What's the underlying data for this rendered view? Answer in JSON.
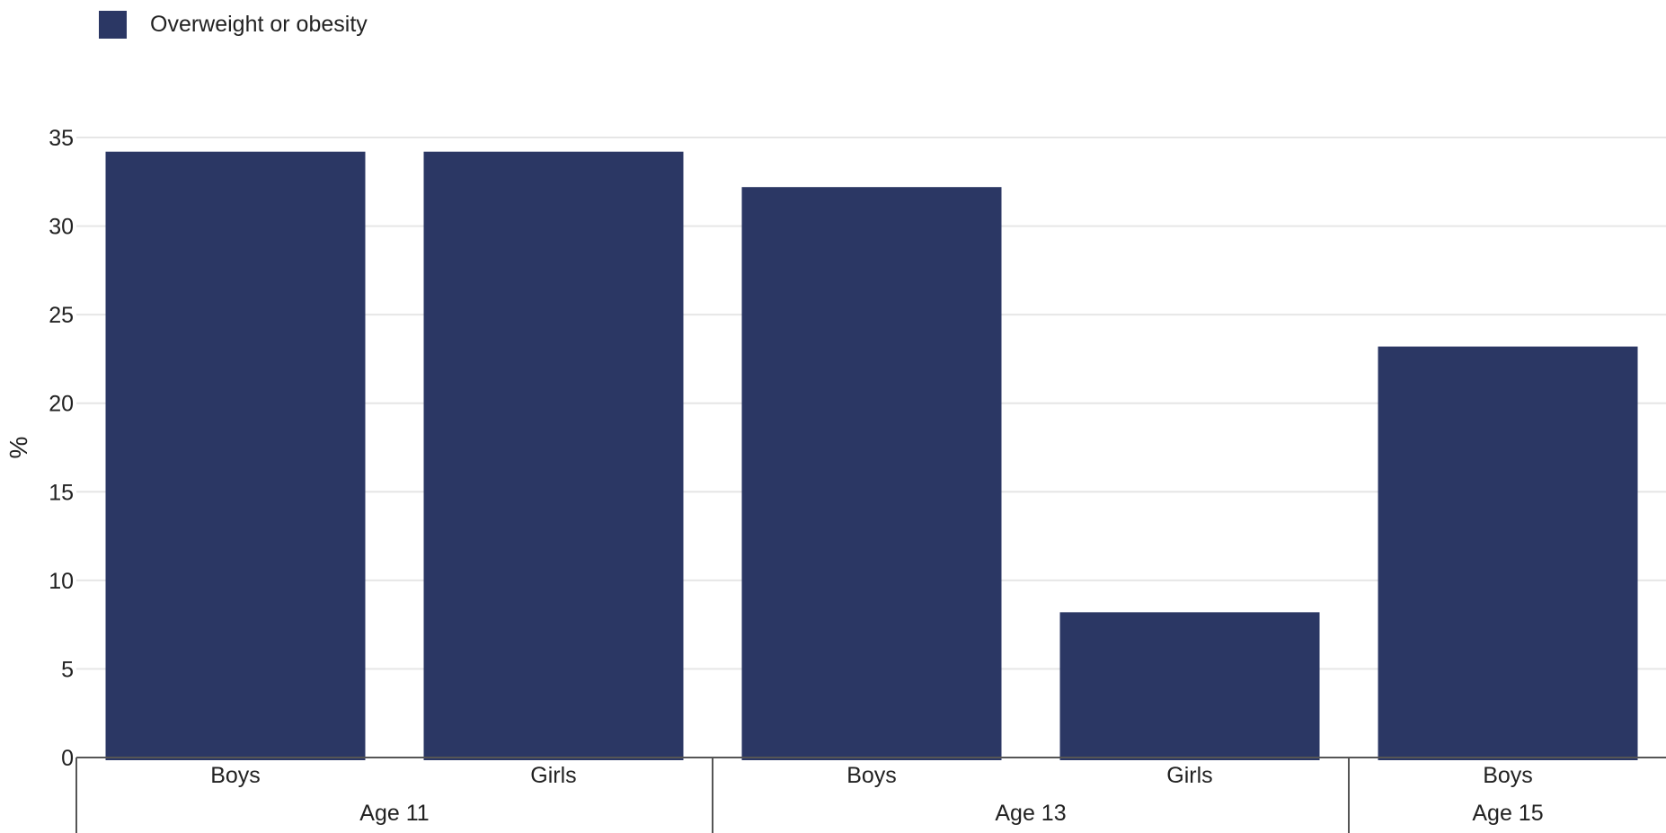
{
  "legend": {
    "label": "Overweight or obesity"
  },
  "colors": {
    "bar": "#2b3764",
    "grid": "#e6e6e6",
    "axis": "#555555"
  },
  "chart_data": {
    "type": "bar",
    "title": "",
    "xlabel": "",
    "ylabel": "%",
    "ylim": [
      0,
      35
    ],
    "yticks": [
      0,
      5,
      10,
      15,
      20,
      25,
      30,
      35
    ],
    "grid": true,
    "legend_position": "top-left",
    "groups": [
      {
        "label": "Age 11",
        "categories": [
          "Boys",
          "Girls"
        ]
      },
      {
        "label": "Age 13",
        "categories": [
          "Boys",
          "Girls"
        ]
      },
      {
        "label": "Age 15",
        "categories": [
          "Boys"
        ]
      }
    ],
    "categories": [
      "Boys",
      "Girls",
      "Boys",
      "Girls",
      "Boys"
    ],
    "series": [
      {
        "name": "Overweight or obesity",
        "values": [
          34.2,
          34.2,
          32.2,
          8.2,
          23.2
        ]
      }
    ]
  }
}
